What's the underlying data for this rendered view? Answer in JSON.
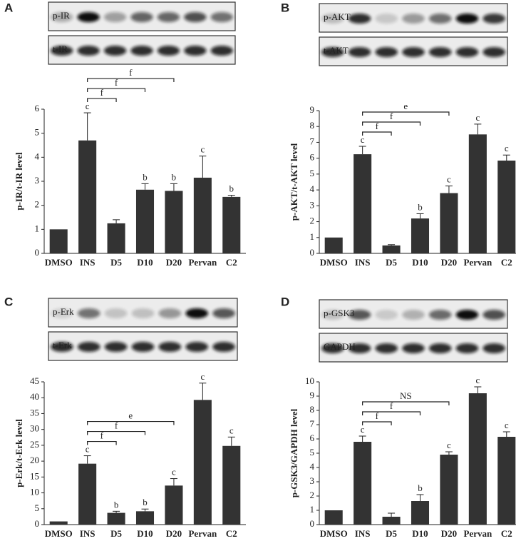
{
  "chart_data": [
    {
      "type": "bar",
      "panel": "A",
      "blots": [
        "p-IR",
        "t-IR"
      ],
      "ylabel": "p-IR/t-IR level",
      "categories": [
        "DMSO",
        "INS",
        "D5",
        "D10",
        "D20",
        "Pervan",
        "C2"
      ],
      "values": [
        1,
        4.7,
        1.25,
        2.65,
        2.6,
        3.15,
        2.35
      ],
      "errors": [
        0,
        1.15,
        0.15,
        0.25,
        0.3,
        0.9,
        0.07
      ],
      "sig_labels": [
        null,
        "c",
        null,
        "b",
        "b",
        "c",
        "b"
      ],
      "comparison_labels": [
        null,
        null,
        "f",
        "f",
        "f",
        null,
        null
      ],
      "color": "#333333",
      "ylim": [
        0,
        6
      ],
      "yticks": [
        0,
        1,
        2,
        3,
        4,
        5,
        6
      ]
    },
    {
      "type": "bar",
      "panel": "B",
      "blots": [
        "p-AKT",
        "t-AKT"
      ],
      "ylabel": "p-AKT/t-AKT level",
      "categories": [
        "DMSO",
        "INS",
        "D5",
        "D10",
        "D20",
        "Pervan",
        "C2"
      ],
      "values": [
        1,
        6.25,
        0.5,
        2.2,
        3.8,
        7.5,
        5.85
      ],
      "errors": [
        0,
        0.5,
        0.05,
        0.3,
        0.45,
        0.65,
        0.35
      ],
      "sig_labels": [
        null,
        "c",
        null,
        "b",
        "c",
        "c",
        "c"
      ],
      "comparison_labels": [
        null,
        null,
        "f",
        "f",
        "e",
        null,
        null
      ],
      "color": "#333333",
      "ylim": [
        0,
        9
      ],
      "yticks": [
        0,
        1,
        2,
        3,
        4,
        5,
        6,
        7,
        8,
        9
      ]
    },
    {
      "type": "bar",
      "panel": "C",
      "blots": [
        "p-Erk",
        "t-Erk"
      ],
      "ylabel": "p-Erk/t-Erk level",
      "categories": [
        "DMSO",
        "INS",
        "D5",
        "D10",
        "D20",
        "Pervan",
        "C2"
      ],
      "values": [
        1,
        19.2,
        3.7,
        4.2,
        12.3,
        39.3,
        24.8
      ],
      "errors": [
        0,
        2.5,
        0.5,
        0.7,
        2.2,
        5.3,
        2.8
      ],
      "sig_labels": [
        null,
        "c",
        "b",
        "b",
        "c",
        "c",
        "c"
      ],
      "comparison_labels": [
        null,
        null,
        "f",
        "f",
        "e",
        null,
        null
      ],
      "color": "#333333",
      "ylim": [
        0,
        45
      ],
      "yticks": [
        0,
        5,
        10,
        15,
        20,
        25,
        30,
        35,
        40,
        45
      ]
    },
    {
      "type": "bar",
      "panel": "D",
      "blots": [
        "p-GSK3",
        "GAPDH"
      ],
      "ylabel": "p-GSK3/GAPDH level",
      "categories": [
        "DMSO",
        "INS",
        "D5",
        "D10",
        "D20",
        "Pervan",
        "C2"
      ],
      "values": [
        1,
        5.8,
        0.55,
        1.65,
        4.9,
        9.2,
        6.15
      ],
      "errors": [
        0,
        0.4,
        0.25,
        0.45,
        0.2,
        0.45,
        0.35
      ],
      "sig_labels": [
        null,
        "c",
        null,
        "b",
        "c",
        "c",
        "c"
      ],
      "comparison_labels": [
        null,
        null,
        "f",
        "f",
        "NS",
        null,
        null
      ],
      "color": "#333333",
      "ylim": [
        0,
        10
      ],
      "yticks": [
        0,
        1,
        2,
        3,
        4,
        5,
        6,
        7,
        8,
        9,
        10
      ]
    }
  ]
}
